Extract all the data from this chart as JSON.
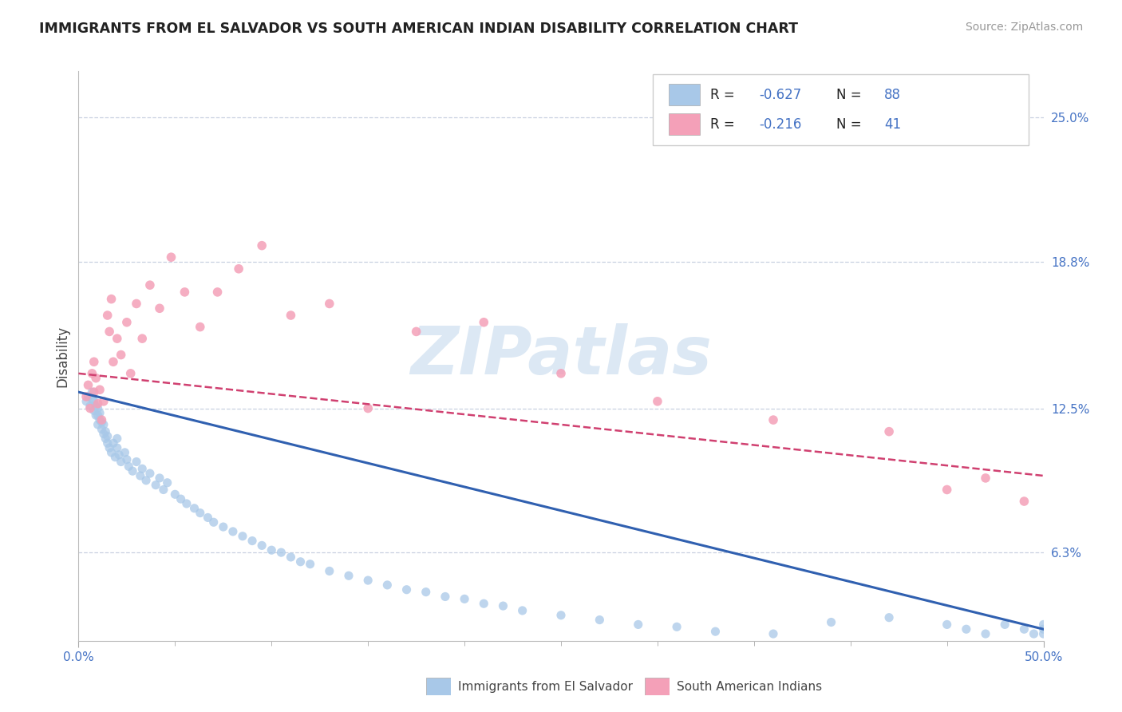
{
  "title": "IMMIGRANTS FROM EL SALVADOR VS SOUTH AMERICAN INDIAN DISABILITY CORRELATION CHART",
  "source": "Source: ZipAtlas.com",
  "ylabel": "Disability",
  "xlim": [
    0.0,
    0.5
  ],
  "ylim": [
    0.025,
    0.27
  ],
  "yticks": [
    0.063,
    0.125,
    0.188,
    0.25
  ],
  "ytick_labels": [
    "6.3%",
    "12.5%",
    "18.8%",
    "25.0%"
  ],
  "xtick_labels_shown": [
    "0.0%",
    "50.0%"
  ],
  "xtick_positions_shown": [
    0.0,
    0.5
  ],
  "xtick_minor": [
    0.05,
    0.1,
    0.15,
    0.2,
    0.25,
    0.3,
    0.35,
    0.4,
    0.45
  ],
  "series1_color": "#a8c8e8",
  "series2_color": "#f4a0b8",
  "series1_label": "Immigrants from El Salvador",
  "series2_label": "South American Indians",
  "series1_R": "-0.627",
  "series1_N": "88",
  "series2_R": "-0.216",
  "series2_N": "41",
  "trend1_color": "#3060b0",
  "trend2_color": "#d04070",
  "trend1_x0": 0.0,
  "trend1_y0": 0.132,
  "trend1_x1": 0.5,
  "trend1_y1": 0.03,
  "trend2_x0": 0.0,
  "trend2_y0": 0.14,
  "trend2_x1": 0.5,
  "trend2_y1": 0.096,
  "background_color": "#ffffff",
  "grid_color": "#c8d0e0",
  "watermark": "ZIPatlas",
  "watermark_color": "#dce8f4",
  "title_color": "#222222",
  "axis_tick_color": "#4472c4",
  "legend_R_color": "#4472c4",
  "series1_x": [
    0.004,
    0.005,
    0.006,
    0.007,
    0.007,
    0.008,
    0.008,
    0.009,
    0.009,
    0.01,
    0.01,
    0.01,
    0.011,
    0.011,
    0.012,
    0.012,
    0.013,
    0.013,
    0.014,
    0.014,
    0.015,
    0.015,
    0.016,
    0.017,
    0.018,
    0.019,
    0.02,
    0.02,
    0.021,
    0.022,
    0.024,
    0.025,
    0.026,
    0.028,
    0.03,
    0.032,
    0.033,
    0.035,
    0.037,
    0.04,
    0.042,
    0.044,
    0.046,
    0.05,
    0.053,
    0.056,
    0.06,
    0.063,
    0.067,
    0.07,
    0.075,
    0.08,
    0.085,
    0.09,
    0.095,
    0.1,
    0.105,
    0.11,
    0.115,
    0.12,
    0.13,
    0.14,
    0.15,
    0.16,
    0.17,
    0.18,
    0.19,
    0.2,
    0.21,
    0.22,
    0.23,
    0.25,
    0.27,
    0.29,
    0.31,
    0.33,
    0.36,
    0.39,
    0.42,
    0.45,
    0.46,
    0.47,
    0.48,
    0.49,
    0.495,
    0.5,
    0.5,
    0.5
  ],
  "series1_y": [
    0.128,
    0.13,
    0.126,
    0.129,
    0.132,
    0.124,
    0.128,
    0.122,
    0.126,
    0.118,
    0.122,
    0.125,
    0.12,
    0.123,
    0.116,
    0.119,
    0.114,
    0.118,
    0.112,
    0.115,
    0.11,
    0.113,
    0.108,
    0.106,
    0.11,
    0.104,
    0.108,
    0.112,
    0.105,
    0.102,
    0.106,
    0.103,
    0.1,
    0.098,
    0.102,
    0.096,
    0.099,
    0.094,
    0.097,
    0.092,
    0.095,
    0.09,
    0.093,
    0.088,
    0.086,
    0.084,
    0.082,
    0.08,
    0.078,
    0.076,
    0.074,
    0.072,
    0.07,
    0.068,
    0.066,
    0.064,
    0.063,
    0.061,
    0.059,
    0.058,
    0.055,
    0.053,
    0.051,
    0.049,
    0.047,
    0.046,
    0.044,
    0.043,
    0.041,
    0.04,
    0.038,
    0.036,
    0.034,
    0.032,
    0.031,
    0.029,
    0.028,
    0.033,
    0.035,
    0.032,
    0.03,
    0.028,
    0.032,
    0.03,
    0.028,
    0.03,
    0.028,
    0.032
  ],
  "series2_x": [
    0.004,
    0.005,
    0.006,
    0.007,
    0.008,
    0.008,
    0.009,
    0.01,
    0.011,
    0.012,
    0.013,
    0.015,
    0.016,
    0.017,
    0.018,
    0.02,
    0.022,
    0.025,
    0.027,
    0.03,
    0.033,
    0.037,
    0.042,
    0.048,
    0.055,
    0.063,
    0.072,
    0.083,
    0.095,
    0.11,
    0.13,
    0.15,
    0.175,
    0.21,
    0.25,
    0.3,
    0.36,
    0.42,
    0.45,
    0.47,
    0.49
  ],
  "series2_y": [
    0.13,
    0.135,
    0.125,
    0.14,
    0.145,
    0.132,
    0.138,
    0.127,
    0.133,
    0.12,
    0.128,
    0.165,
    0.158,
    0.172,
    0.145,
    0.155,
    0.148,
    0.162,
    0.14,
    0.17,
    0.155,
    0.178,
    0.168,
    0.19,
    0.175,
    0.16,
    0.175,
    0.185,
    0.195,
    0.165,
    0.17,
    0.125,
    0.158,
    0.162,
    0.14,
    0.128,
    0.12,
    0.115,
    0.09,
    0.095,
    0.085
  ]
}
